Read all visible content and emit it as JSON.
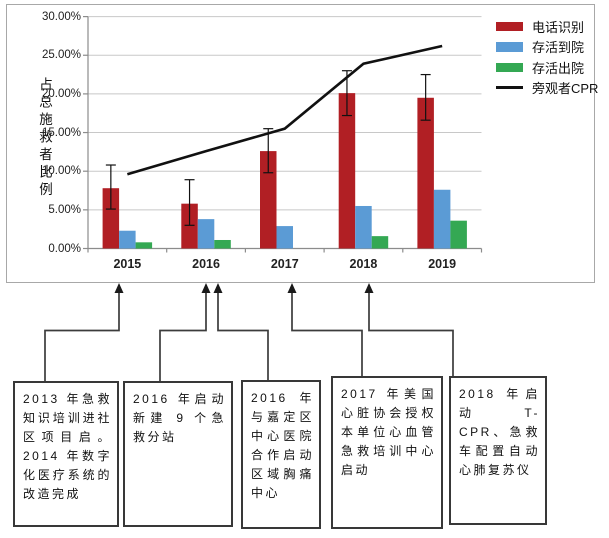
{
  "chart_data": {
    "type": "bar+line",
    "categories": [
      "2015",
      "2016",
      "2017",
      "2018",
      "2019"
    ],
    "series": [
      {
        "id": "phone-recognition",
        "name": "电话识别",
        "type": "bar",
        "color": "#b11f24",
        "values": [
          7.8,
          5.8,
          12.6,
          20.1,
          19.5
        ],
        "error_low": [
          5.1,
          3.0,
          9.8,
          17.2,
          16.6
        ],
        "error_high": [
          10.8,
          8.9,
          15.5,
          23.0,
          22.5
        ]
      },
      {
        "id": "survival-to-hospital",
        "name": "存活到院",
        "type": "bar",
        "color": "#5b9bd5",
        "values": [
          2.3,
          3.8,
          2.9,
          5.5,
          7.6
        ]
      },
      {
        "id": "survival-to-discharge",
        "name": "存活出院",
        "type": "bar",
        "color": "#34a853",
        "values": [
          0.8,
          1.1,
          0,
          1.6,
          3.6
        ]
      },
      {
        "id": "bystander-cpr",
        "name": "旁观者CPR",
        "type": "line",
        "color": "#111111",
        "values": [
          9.6,
          12.6,
          15.5,
          23.9,
          26.2
        ]
      }
    ],
    "title": "",
    "xlabel": "",
    "ylabel": "占总施救者比例",
    "ylim": [
      0,
      30
    ],
    "y_tick_step": 5,
    "y_tick_labels": [
      "30.00%",
      "25.00%",
      "20.00%",
      "15.00%",
      "10.00%",
      "5.00%",
      "0.00%"
    ],
    "grid": true,
    "legend_position": "right",
    "error_bars_on": "电话识别"
  },
  "annotations": [
    {
      "text": "2013 年急救知识培训进社区项目启。2014 年数字化医疗系统的改造完成",
      "points_to": "2015"
    },
    {
      "text": "2016 年启动新建 9 个急救分站",
      "points_to": "2016"
    },
    {
      "text": "2016 年与嘉定区中心医院合作启动区域胸痛中心",
      "points_to": "2016"
    },
    {
      "text": "2017 年美国心脏协会授权本单位心血管急救培训中心启动",
      "points_to": "2017"
    },
    {
      "text": "2018 年启动 T-CPR、急救车配置自动心肺复苏仪",
      "points_to": "2018"
    }
  ],
  "colors": {
    "grid": "#c8c8c8",
    "axis": "#8c8c8c",
    "panel_border": "#a8a8a8",
    "connector": "#3c3c3c",
    "arrowhead": "#1a1a1a"
  }
}
